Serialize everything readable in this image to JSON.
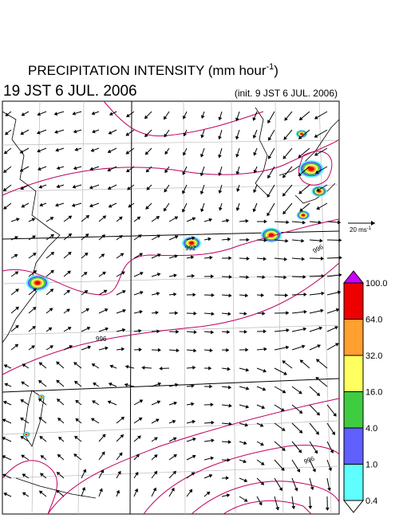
{
  "header": {
    "title": "PRECIPITATION INTENSITY (mm hour",
    "title_sup": "-1",
    "title_end": ")",
    "valid_time": "19 JST 6 JUL. 2006",
    "init_time": "(init. 9 JST 6 JUL. 2006)"
  },
  "wind_scale": {
    "label": "20 ms",
    "label_sup": "-1"
  },
  "contour_labels": [
    "992",
    "996",
    "996",
    "996"
  ],
  "colorbar": {
    "labels": [
      "100.0",
      "64.0",
      "32.0",
      "16.0",
      "4.0",
      "1.0",
      "0.4"
    ],
    "colors": [
      "#ee0000",
      "#ffa030",
      "#ffff60",
      "#40cc40",
      "#6060ff",
      "#60ffff"
    ],
    "over_color": "#cc00ff",
    "under_color": "#ffffff"
  }
}
